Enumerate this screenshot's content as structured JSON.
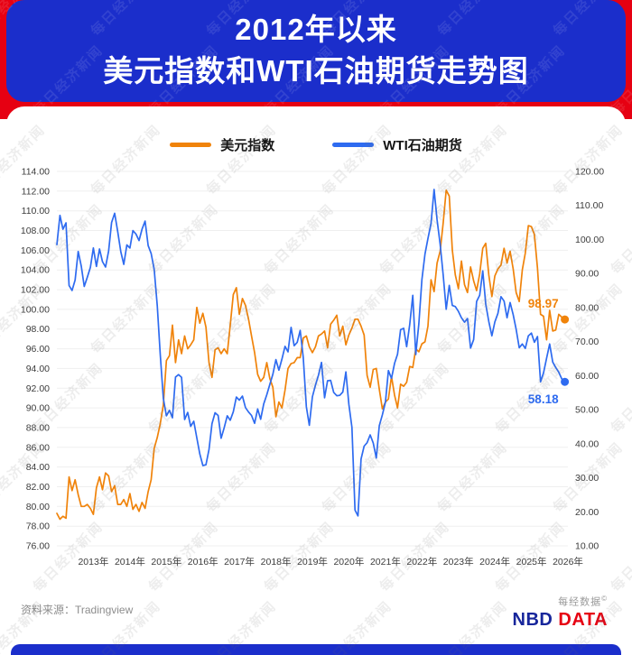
{
  "header": {
    "title_line1": "2012年以来",
    "title_line2": "美元指数和WTI石油期货走势图"
  },
  "watermark": {
    "text": "每日经济新闻"
  },
  "footer": {
    "source": "资料来源：Tradingview",
    "brand_small": "每经数据",
    "brand_mark": "©",
    "brand_nbd": "NBD",
    "brand_data": "DATA"
  },
  "chart_data": {
    "type": "line",
    "title": "2012年以来美元指数和WTI石油期货走势图",
    "x_unit": "month",
    "x_start": "2012-01",
    "x_tick_labels": [
      "2013年",
      "2014年",
      "2015年",
      "2016年",
      "2017年",
      "2018年",
      "2019年",
      "2020年",
      "2021年",
      "2022年",
      "2023年",
      "2024年",
      "2025年",
      "2026年"
    ],
    "grid": "horizontal-faint",
    "legend_position": "top-center",
    "axes": {
      "left": {
        "min": 76,
        "max": 114,
        "step": 2,
        "applies_to": "美元指数",
        "tick_format": "0.00"
      },
      "right": {
        "min": 10,
        "max": 120,
        "step": 10,
        "applies_to": "WTI石油期货",
        "tick_format": "0.00"
      }
    },
    "series": [
      {
        "name": "美元指数",
        "axis": "left",
        "color": "#f0830a",
        "end_label": "98.97",
        "values": [
          79.3,
          78.7,
          79.0,
          78.8,
          83.0,
          81.6,
          82.7,
          81.2,
          80.0,
          80.0,
          80.2,
          79.8,
          79.2,
          81.9,
          83.0,
          81.7,
          83.4,
          83.1,
          81.5,
          82.1,
          80.2,
          80.2,
          80.7,
          80.0,
          81.3,
          79.7,
          80.2,
          79.5,
          80.4,
          79.8,
          81.5,
          82.7,
          85.9,
          87.0,
          88.4,
          90.3,
          94.8,
          95.3,
          98.4,
          94.6,
          96.9,
          95.5,
          97.3,
          96.0,
          96.4,
          96.9,
          100.2,
          98.6,
          99.6,
          98.2,
          94.6,
          93.1,
          95.9,
          96.1,
          95.5,
          96.0,
          95.5,
          98.4,
          101.5,
          102.2,
          99.5,
          101.1,
          100.4,
          99.0,
          97.3,
          95.6,
          93.4,
          92.7,
          93.1,
          94.6,
          93.0,
          92.1,
          89.1,
          90.6,
          90.0,
          91.8,
          94.0,
          94.5,
          94.6,
          95.1,
          95.1,
          97.1,
          97.3,
          96.2,
          95.6,
          96.2,
          97.3,
          97.5,
          97.8,
          96.1,
          98.5,
          98.9,
          99.4,
          97.3,
          98.3,
          96.4,
          97.4,
          98.1,
          99.0,
          99.0,
          98.3,
          97.4,
          93.3,
          92.1,
          93.9,
          94.0,
          91.9,
          89.9,
          90.6,
          90.9,
          93.2,
          91.3,
          90.0,
          92.4,
          92.2,
          92.6,
          94.2,
          94.1,
          96.0,
          95.7,
          96.5,
          96.7,
          98.3,
          103.0,
          101.8,
          104.7,
          105.9,
          108.8,
          112.1,
          111.5,
          106.0,
          103.5,
          102.1,
          104.9,
          102.5,
          101.7,
          104.3,
          102.9,
          101.9,
          103.6,
          106.2,
          106.7,
          103.5,
          101.3,
          103.4,
          104.1,
          104.5,
          106.2,
          104.7,
          105.9,
          104.1,
          101.7,
          100.8,
          104.0,
          105.7,
          108.5,
          108.4,
          107.6,
          104.2,
          99.5,
          99.3,
          96.9,
          99.9,
          97.8,
          97.9,
          99.5,
          99.2,
          98.97
        ]
      },
      {
        "name": "WTI石油期货",
        "axis": "right",
        "color": "#2e6bf0",
        "end_label": "58.18",
        "values": [
          98.5,
          107.1,
          103.0,
          104.9,
          86.5,
          85.0,
          88.1,
          96.5,
          92.2,
          86.2,
          88.9,
          91.8,
          97.5,
          92.1,
          97.2,
          93.5,
          91.9,
          96.6,
          105.0,
          107.7,
          102.3,
          96.4,
          92.7,
          98.4,
          97.5,
          102.6,
          101.6,
          99.7,
          103.0,
          105.4,
          98.2,
          95.9,
          91.2,
          80.5,
          66.2,
          53.3,
          48.2,
          49.8,
          47.6,
          59.6,
          60.3,
          59.5,
          47.1,
          49.2,
          45.1,
          46.6,
          41.7,
          37.0,
          33.6,
          33.8,
          38.3,
          45.9,
          49.1,
          48.3,
          41.6,
          44.7,
          48.2,
          46.9,
          49.4,
          53.7,
          52.8,
          54.0,
          50.6,
          49.3,
          48.3,
          46.0,
          50.2,
          47.2,
          51.7,
          54.4,
          57.4,
          60.4,
          64.7,
          61.6,
          64.9,
          68.6,
          67.0,
          74.2,
          68.8,
          69.8,
          73.3,
          65.3,
          50.9,
          45.4,
          53.8,
          57.2,
          60.1,
          63.9,
          53.5,
          58.5,
          58.6,
          55.1,
          54.1,
          54.2,
          55.2,
          61.1,
          51.6,
          44.8,
          20.5,
          18.8,
          35.5,
          39.3,
          40.3,
          42.6,
          40.2,
          35.8,
          45.3,
          48.5,
          52.2,
          61.5,
          59.2,
          63.6,
          66.3,
          73.5,
          73.9,
          68.5,
          75.0,
          83.6,
          66.2,
          75.2,
          88.2,
          95.7,
          100.3,
          104.7,
          114.7,
          105.8,
          98.6,
          89.5,
          79.5,
          86.5,
          80.6,
          80.3,
          78.9,
          77.0,
          75.7,
          76.8,
          68.1,
          70.6,
          81.8,
          83.6,
          90.8,
          81.0,
          75.9,
          71.7,
          75.8,
          78.3,
          83.2,
          81.9,
          77.0,
          81.5,
          77.9,
          73.6,
          68.2,
          69.3,
          68.0,
          71.7,
          72.5,
          69.8,
          71.5,
          58.2,
          60.8,
          65.1,
          69.3,
          64.0,
          62.4,
          61.0,
          59.0,
          58.18
        ]
      }
    ]
  }
}
